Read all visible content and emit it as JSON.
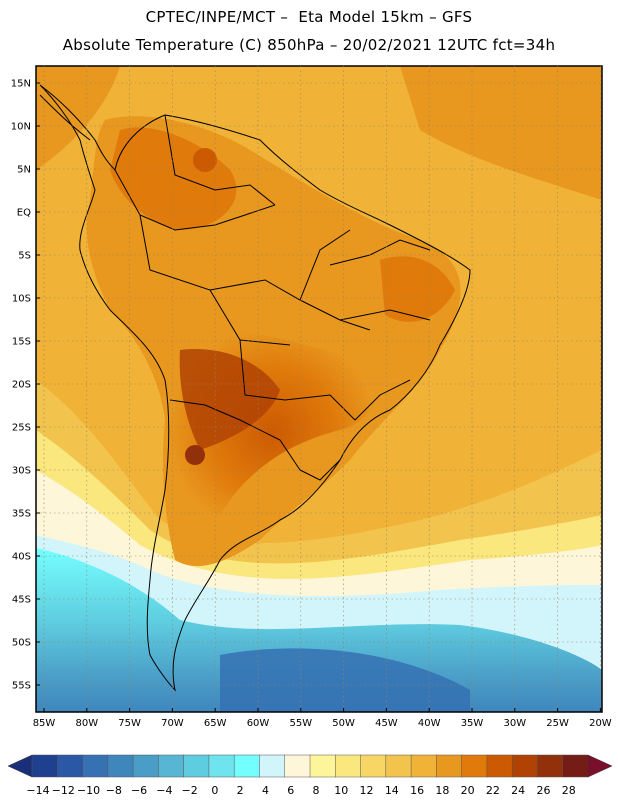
{
  "header": {
    "line1": "CPTEC/INPE/MCT –  Eta Model 15km – GFS",
    "line2": "Absolute Temperature (C) 850hPa – 20/02/2021 12UTC fct=34h"
  },
  "map": {
    "lat_ticks": [
      "15N",
      "10N",
      "5N",
      "EQ",
      "5S",
      "10S",
      "15S",
      "20S",
      "25S",
      "30S",
      "35S",
      "40S",
      "45S",
      "50S",
      "55S"
    ],
    "lon_ticks": [
      "85W",
      "80W",
      "75W",
      "70W",
      "65W",
      "60W",
      "55W",
      "50W",
      "45W",
      "40W",
      "35W",
      "30W",
      "25W",
      "20W"
    ]
  },
  "colorbar": {
    "labels": [
      "-14",
      "-12",
      "-10",
      "-8",
      "-6",
      "-4",
      "-2",
      "0",
      "2",
      "4",
      "6",
      "8",
      "10",
      "12",
      "14",
      "16",
      "18",
      "20",
      "22",
      "24",
      "26",
      "28"
    ],
    "colors": [
      "#1f3f8f",
      "#2a58a5",
      "#3571b3",
      "#3f86bd",
      "#4a9dc7",
      "#56b6d3",
      "#5fcde0",
      "#6fe3ee",
      "#74ffff",
      "#d2f5fb",
      "#fdf6d8",
      "#fdf59a",
      "#fae77d",
      "#f7d665",
      "#f3c44d",
      "#f0b237",
      "#e8981e",
      "#e07a0b",
      "#cc5a02",
      "#b04304",
      "#92300b",
      "#751c16"
    ]
  }
}
